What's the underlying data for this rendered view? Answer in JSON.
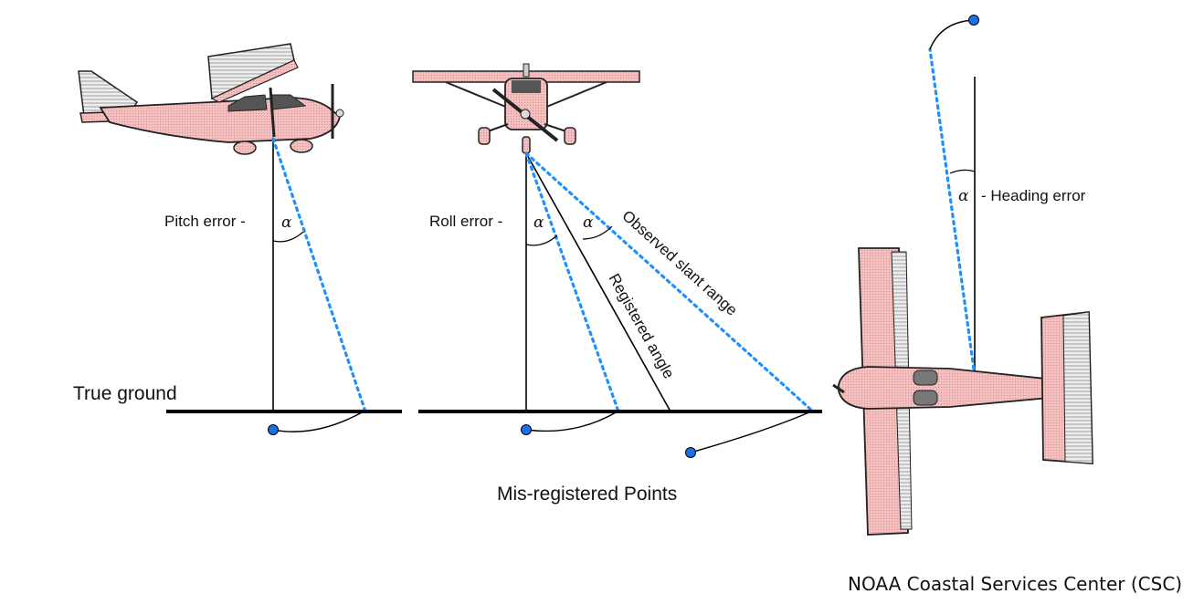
{
  "labels": {
    "true_ground": "True ground",
    "pitch_error": "Pitch error -",
    "roll_error": "Roll error -",
    "heading_error": "- Heading error",
    "alpha": "α",
    "observed_slant_range": "Observed slant range",
    "registered_angle": "Registered angle",
    "misregistered_points": "Mis-registered Points",
    "credit": "NOAA Coastal Services Center (CSC)"
  },
  "colors": {
    "aircraft_fill": "#f2b6b6",
    "aircraft_outline": "#222222",
    "dotted_line": "#1e90ff",
    "point_fill": "#1e6fe0",
    "ground_line": "#000000"
  },
  "icons": [
    "side-view-airplane-icon",
    "front-view-airplane-icon",
    "top-view-airplane-icon"
  ]
}
